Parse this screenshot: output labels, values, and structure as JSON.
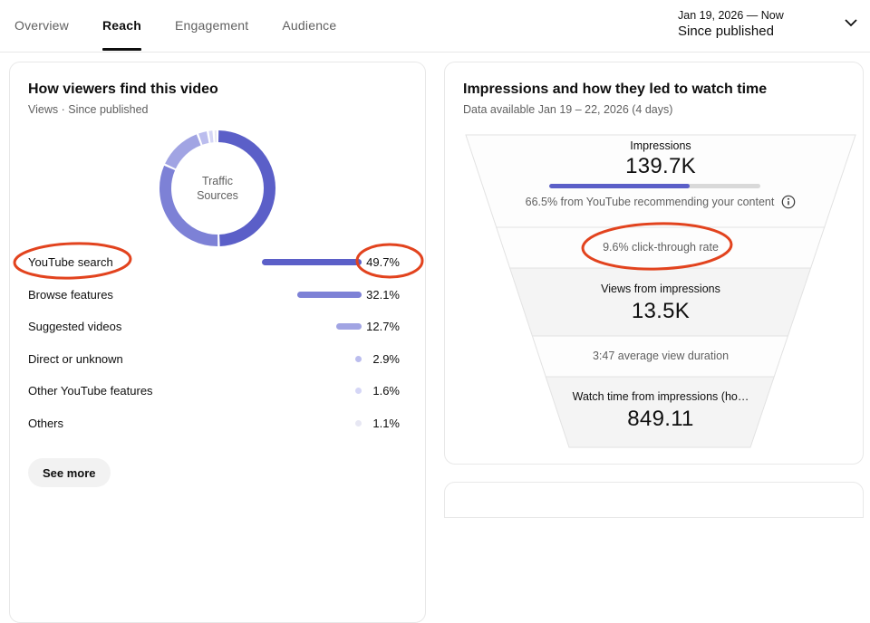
{
  "header": {
    "tabs": [
      {
        "label": "Overview",
        "active": false
      },
      {
        "label": "Reach",
        "active": true
      },
      {
        "label": "Engagement",
        "active": false
      },
      {
        "label": "Audience",
        "active": false
      }
    ],
    "date_picker": {
      "range": "Jan 19, 2026 — Now",
      "preset": "Since published"
    }
  },
  "traffic_card": {
    "title": "How viewers find this video",
    "subtitle": "Views · Since published",
    "donut_center_line1": "Traffic",
    "donut_center_line2": "Sources",
    "rows": [
      {
        "label": "YouTube search",
        "pct": 49.7,
        "value_text": "49.7%"
      },
      {
        "label": "Browse features",
        "pct": 32.1,
        "value_text": "32.1%"
      },
      {
        "label": "Suggested videos",
        "pct": 12.7,
        "value_text": "12.7%"
      },
      {
        "label": "Direct or unknown",
        "pct": 2.9,
        "value_text": "2.9%"
      },
      {
        "label": "Other YouTube features",
        "pct": 1.6,
        "value_text": "1.6%"
      },
      {
        "label": "Others",
        "pct": 1.1,
        "value_text": "1.1%"
      }
    ],
    "see_more_label": "See more"
  },
  "funnel_card": {
    "title": "Impressions and how they led to watch time",
    "subtitle": "Data available Jan 19 – 22, 2026 (4 days)",
    "impressions_label": "Impressions",
    "impressions_value": "139.7K",
    "recommended_pct": 66.5,
    "recommended_text": "66.5% from YouTube recommending your content",
    "ctr_text": "9.6% click-through rate",
    "views_label": "Views from impressions",
    "views_value": "13.5K",
    "duration_text": "3:47 average view duration",
    "watch_label": "Watch time from impressions (ho…",
    "watch_value": "849.11"
  },
  "colors": {
    "palette": [
      "#5b5fc8",
      "#7d81d6",
      "#a1a4e3",
      "#bbbdee",
      "#d5d6f6",
      "#e7e7f3"
    ],
    "progress_track": "#d9d9d9",
    "funnel_gray": "#f4f4f4",
    "funnel_white": "#fdfdfd",
    "funnel_stroke": "#e2e2e2",
    "annotation": "#e2431e"
  },
  "annotations": {
    "circled_items": [
      "YouTube search",
      "49.7%",
      "9.6% click-through rate"
    ]
  },
  "chart_data": [
    {
      "type": "pie",
      "donut": true,
      "title": "How viewers find this video",
      "subtitle": "Views · Since published",
      "center_label": "Traffic Sources",
      "unit": "%",
      "categories": [
        "YouTube search",
        "Browse features",
        "Suggested videos",
        "Direct or unknown",
        "Other YouTube features",
        "Others"
      ],
      "values": [
        49.7,
        32.1,
        12.7,
        2.9,
        1.6,
        1.1
      ],
      "colors": [
        "#5b5fc8",
        "#7d81d6",
        "#a1a4e3",
        "#bbbdee",
        "#d5d6f6",
        "#e7e7f3"
      ],
      "legend_position": "below"
    },
    {
      "type": "funnel",
      "title": "Impressions and how they led to watch time",
      "subtitle": "Data available Jan 19 – 22, 2026 (4 days)",
      "stages": [
        {
          "label": "Impressions",
          "display": "139.7K",
          "value": 139700
        },
        {
          "label": "Click-through rate",
          "display": "9.6%",
          "value": 9.6
        },
        {
          "label": "Views from impressions",
          "display": "13.5K",
          "value": 13500
        },
        {
          "label": "Average view duration",
          "display": "3:47"
        },
        {
          "label": "Watch time from impressions (hours)",
          "display": "849.11",
          "value": 849.11
        }
      ],
      "note": "66.5% from YouTube recommending your content"
    }
  ]
}
